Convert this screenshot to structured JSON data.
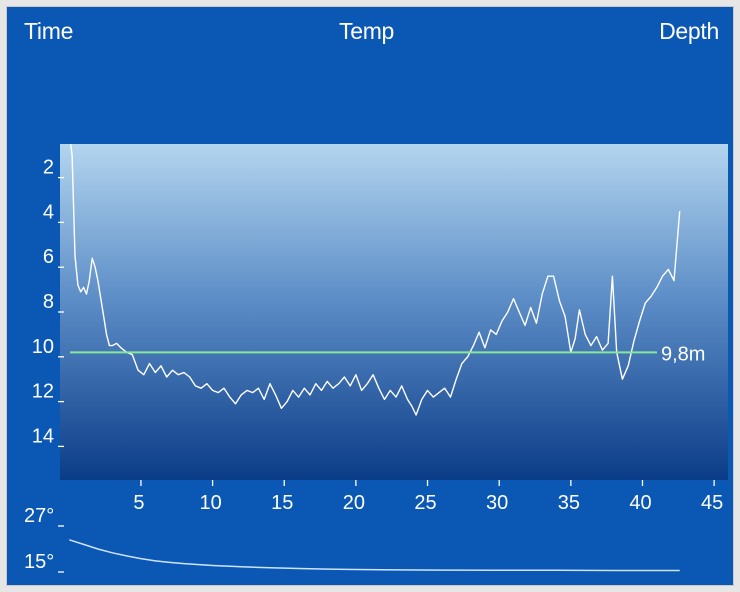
{
  "header": {
    "tabs": [
      {
        "label": "Time"
      },
      {
        "label": "Temp"
      },
      {
        "label": "Depth"
      }
    ]
  },
  "colors": {
    "background": "#0b57b4",
    "plot_gradient_top": "#b3d5ee",
    "plot_gradient_bottom": "#0b3c88",
    "depth_line": "#ffffff",
    "avg_line": "#86e79a",
    "temp_line": "#cfe3ff"
  },
  "chart_data": [
    {
      "type": "line",
      "name": "depth-profile",
      "xlabel": "",
      "ylabel": "",
      "xlim": [
        0,
        45
      ],
      "ylim": [
        0.5,
        15.5
      ],
      "y_inverted": true,
      "x_ticks": [
        5,
        10,
        15,
        20,
        25,
        30,
        35,
        40,
        45
      ],
      "y_ticks": [
        2,
        4,
        6,
        8,
        10,
        12,
        14
      ],
      "grid": false,
      "average": {
        "value": 9.8,
        "label": "9,8m"
      },
      "series": [
        {
          "x": [
            0.1,
            0.2,
            0.4,
            0.6,
            0.8,
            1.0,
            1.2,
            1.4,
            1.6,
            1.8,
            2.0,
            2.2,
            2.4,
            2.6,
            2.8,
            3.0,
            3.3,
            3.6,
            4.0,
            4.4,
            4.8,
            5.2,
            5.6,
            6.0,
            6.4,
            6.8,
            7.2,
            7.6,
            8.0,
            8.4,
            8.8,
            9.2,
            9.6,
            10.0,
            10.4,
            10.8,
            11.2,
            11.6,
            12.0,
            12.4,
            12.8,
            13.2,
            13.6,
            14.0,
            14.4,
            14.8,
            15.2,
            15.6,
            16.0,
            16.4,
            16.8,
            17.2,
            17.6,
            18.0,
            18.4,
            18.8,
            19.2,
            19.6,
            20.0,
            20.4,
            20.8,
            21.2,
            21.6,
            22.0,
            22.4,
            22.8,
            23.2,
            23.6,
            23.9,
            24.2,
            24.6,
            25.0,
            25.4,
            25.8,
            26.2,
            26.6,
            27.0,
            27.4,
            27.8,
            28.2,
            28.6,
            29.0,
            29.4,
            29.8,
            30.2,
            30.6,
            31.0,
            31.4,
            31.8,
            32.2,
            32.6,
            33.0,
            33.4,
            33.8,
            34.2,
            34.6,
            35.0,
            35.3,
            35.6,
            36.0,
            36.4,
            36.8,
            37.2,
            37.6,
            37.9,
            38.2,
            38.6,
            39.0,
            39.4,
            39.8,
            40.2,
            40.6,
            41.0,
            41.4,
            41.8,
            42.2,
            42.6
          ],
          "y": [
            0.5,
            1.0,
            5.5,
            6.8,
            7.1,
            6.9,
            7.2,
            6.6,
            5.6,
            6.0,
            6.6,
            7.4,
            8.2,
            9.0,
            9.5,
            9.5,
            9.4,
            9.6,
            9.8,
            9.9,
            10.6,
            10.8,
            10.3,
            10.7,
            10.4,
            10.9,
            10.6,
            10.8,
            10.7,
            10.9,
            11.3,
            11.4,
            11.2,
            11.5,
            11.6,
            11.4,
            11.8,
            12.1,
            11.7,
            11.5,
            11.6,
            11.4,
            11.9,
            11.2,
            11.7,
            12.3,
            12.0,
            11.5,
            11.8,
            11.4,
            11.7,
            11.2,
            11.5,
            11.1,
            11.4,
            11.2,
            10.9,
            11.3,
            10.8,
            11.5,
            11.2,
            10.8,
            11.4,
            11.9,
            11.5,
            11.8,
            11.3,
            11.9,
            12.2,
            12.6,
            11.9,
            11.5,
            11.8,
            11.6,
            11.4,
            11.8,
            11.0,
            10.3,
            10.0,
            9.5,
            8.9,
            9.6,
            8.8,
            9.0,
            8.4,
            8.0,
            7.4,
            8.0,
            8.6,
            7.8,
            8.5,
            7.2,
            6.4,
            6.4,
            7.5,
            8.2,
            9.8,
            9.2,
            7.9,
            9.0,
            9.5,
            9.1,
            9.7,
            9.4,
            6.4,
            9.8,
            11.0,
            10.4,
            9.3,
            8.4,
            7.6,
            7.3,
            6.9,
            6.4,
            6.1,
            6.6,
            3.5
          ]
        }
      ]
    },
    {
      "type": "line",
      "name": "temperature-profile",
      "xlabel": "",
      "ylabel": "",
      "xlim": [
        0,
        45
      ],
      "ylim": [
        15,
        27
      ],
      "y_ticks": [
        {
          "value": 27,
          "label": "27°"
        },
        {
          "value": 15,
          "label": "15°"
        }
      ],
      "grid": false,
      "series": [
        {
          "x": [
            0.0,
            1.0,
            2.0,
            3.0,
            4.0,
            5.0,
            6.0,
            7.0,
            8.0,
            10.0,
            12.0,
            14.0,
            16.0,
            18.0,
            20.0,
            23.0,
            26.0,
            30.0,
            34.0,
            38.0,
            42.0,
            42.6
          ],
          "y": [
            23.4,
            22.2,
            21.0,
            20.0,
            19.2,
            18.5,
            17.9,
            17.5,
            17.2,
            16.7,
            16.35,
            16.1,
            15.9,
            15.75,
            15.65,
            15.55,
            15.5,
            15.45,
            15.45,
            15.4,
            15.4,
            15.4
          ]
        }
      ]
    }
  ]
}
